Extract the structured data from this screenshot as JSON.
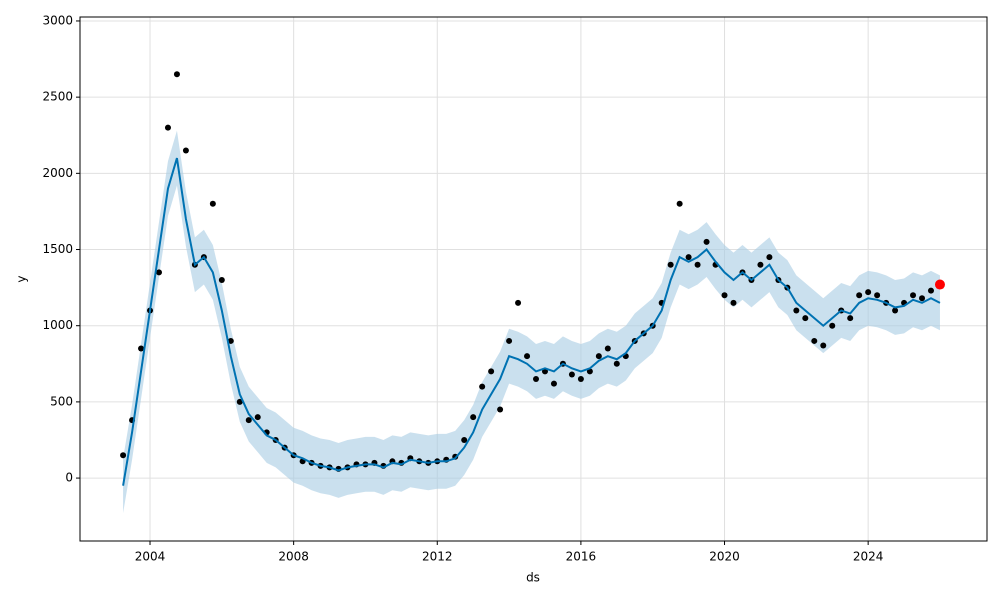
{
  "chart_data": {
    "type": "forecast",
    "x_label": "ds",
    "y_label": "y",
    "xlim": [
      2002.05,
      2027.31
    ],
    "ylim": [
      -413,
      3026
    ],
    "xticks": [
      2004,
      2008,
      2012,
      2016,
      2020,
      2024
    ],
    "yticks": [
      0,
      500,
      1000,
      1500,
      2000,
      2500,
      3000
    ],
    "grid": true,
    "x": [
      2003.25,
      2003.5,
      2003.75,
      2004.0,
      2004.25,
      2004.5,
      2004.75,
      2005.0,
      2005.25,
      2005.5,
      2005.75,
      2006.0,
      2006.25,
      2006.5,
      2006.75,
      2007.0,
      2007.25,
      2007.5,
      2007.75,
      2008.0,
      2008.25,
      2008.5,
      2008.75,
      2009.0,
      2009.25,
      2009.5,
      2009.75,
      2010.0,
      2010.25,
      2010.5,
      2010.75,
      2011.0,
      2011.25,
      2011.5,
      2011.75,
      2012.0,
      2012.25,
      2012.5,
      2012.75,
      2013.0,
      2013.25,
      2013.5,
      2013.75,
      2014.0,
      2014.25,
      2014.5,
      2014.75,
      2015.0,
      2015.25,
      2015.5,
      2015.75,
      2016.0,
      2016.25,
      2016.5,
      2016.75,
      2017.0,
      2017.25,
      2017.5,
      2017.75,
      2018.0,
      2018.25,
      2018.5,
      2018.75,
      2019.0,
      2019.25,
      2019.5,
      2019.75,
      2020.0,
      2020.25,
      2020.5,
      2020.75,
      2021.0,
      2021.25,
      2021.5,
      2021.75,
      2022.0,
      2022.25,
      2022.5,
      2022.75,
      2023.0,
      2023.25,
      2023.5,
      2023.75,
      2024.0,
      2024.25,
      2024.5,
      2024.75,
      2025.0,
      2025.25,
      2025.5,
      2025.75,
      2026.0
    ],
    "observed": {
      "color": "#000000",
      "values": [
        150,
        380,
        850,
        1100,
        1350,
        2300,
        2650,
        2150,
        1400,
        1450,
        1800,
        1300,
        900,
        500,
        380,
        400,
        300,
        250,
        200,
        150,
        110,
        100,
        80,
        70,
        60,
        70,
        90,
        90,
        100,
        80,
        110,
        100,
        130,
        110,
        100,
        110,
        120,
        140,
        250,
        400,
        600,
        700,
        450,
        900,
        1150,
        800,
        650,
        700,
        620,
        750,
        680,
        650,
        700,
        800,
        850,
        750,
        800,
        900,
        950,
        1000,
        1150,
        1400,
        1800,
        1450,
        1400,
        1550,
        1400,
        1200,
        1150,
        1350,
        1300,
        1400,
        1450,
        1300,
        1250,
        1100,
        1050,
        900,
        870,
        1000,
        1100,
        1050,
        1200,
        1220,
        1200,
        1150,
        1100,
        1150,
        1200,
        1180,
        1230,
        null
      ]
    },
    "forecast": {
      "color": "#0072b2",
      "values": [
        -50,
        300,
        700,
        1100,
        1500,
        1900,
        2100,
        1700,
        1400,
        1450,
        1350,
        1100,
        800,
        550,
        420,
        350,
        280,
        250,
        200,
        150,
        130,
        100,
        80,
        70,
        50,
        70,
        80,
        90,
        90,
        70,
        100,
        90,
        120,
        110,
        100,
        110,
        110,
        130,
        200,
        300,
        450,
        550,
        650,
        800,
        780,
        750,
        700,
        720,
        700,
        750,
        720,
        700,
        720,
        770,
        800,
        780,
        820,
        900,
        950,
        1000,
        1100,
        1300,
        1450,
        1420,
        1450,
        1500,
        1420,
        1350,
        1300,
        1350,
        1300,
        1350,
        1400,
        1300,
        1250,
        1150,
        1100,
        1050,
        1000,
        1050,
        1100,
        1080,
        1150,
        1180,
        1170,
        1150,
        1120,
        1130,
        1170,
        1150,
        1180,
        1150
      ]
    },
    "band": {
      "color": "#a6cbe3",
      "lower": [
        -230,
        120,
        520,
        920,
        1320,
        1720,
        1920,
        1520,
        1220,
        1270,
        1170,
        920,
        620,
        370,
        240,
        170,
        100,
        70,
        20,
        -30,
        -50,
        -80,
        -100,
        -110,
        -130,
        -110,
        -100,
        -90,
        -90,
        -110,
        -80,
        -90,
        -60,
        -70,
        -80,
        -70,
        -70,
        -50,
        20,
        120,
        270,
        370,
        470,
        620,
        600,
        570,
        520,
        540,
        520,
        570,
        540,
        520,
        540,
        590,
        620,
        600,
        640,
        720,
        770,
        820,
        920,
        1120,
        1270,
        1240,
        1270,
        1320,
        1240,
        1170,
        1120,
        1170,
        1120,
        1170,
        1220,
        1120,
        1070,
        970,
        920,
        870,
        820,
        870,
        920,
        900,
        970,
        1000,
        990,
        970,
        940,
        950,
        990,
        970,
        1000,
        970
      ],
      "upper": [
        130,
        480,
        880,
        1280,
        1680,
        2080,
        2280,
        1880,
        1580,
        1630,
        1530,
        1280,
        980,
        730,
        600,
        530,
        460,
        430,
        380,
        330,
        310,
        280,
        260,
        250,
        230,
        250,
        260,
        270,
        270,
        250,
        280,
        270,
        300,
        290,
        280,
        290,
        290,
        310,
        380,
        480,
        630,
        730,
        830,
        980,
        960,
        930,
        880,
        900,
        880,
        930,
        900,
        880,
        900,
        950,
        980,
        960,
        1000,
        1080,
        1130,
        1180,
        1280,
        1480,
        1630,
        1600,
        1630,
        1680,
        1600,
        1530,
        1480,
        1530,
        1480,
        1530,
        1580,
        1480,
        1430,
        1330,
        1280,
        1230,
        1180,
        1230,
        1280,
        1260,
        1330,
        1360,
        1350,
        1330,
        1300,
        1310,
        1350,
        1330,
        1360,
        1330
      ]
    },
    "highlight": {
      "color": "#ff0000",
      "x": 2026.0,
      "y": 1270
    }
  }
}
